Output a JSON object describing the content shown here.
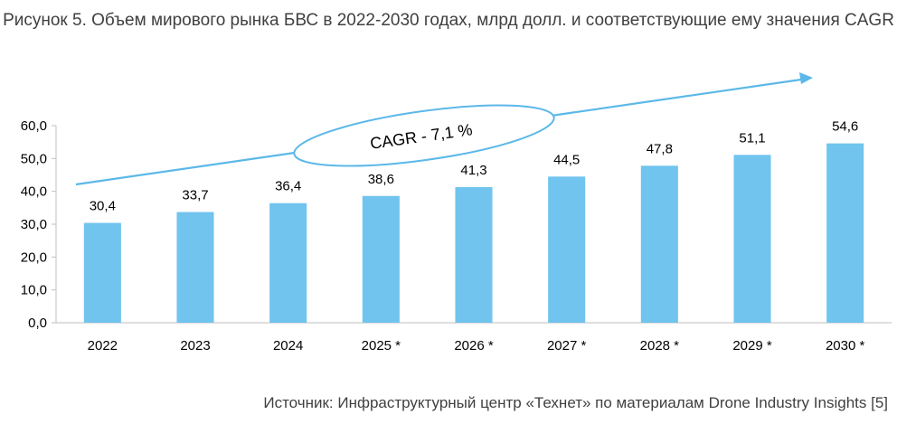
{
  "chart_data": {
    "type": "bar",
    "title": "Рисунок 5. Объем мирового рынка БВС в 2022-2030 годах, млрд долл. и соответствующие ему значения CAGR",
    "categories": [
      "2022",
      "2023",
      "2024",
      "2025 *",
      "2026 *",
      "2027 *",
      "2028 *",
      "2029 *",
      "2030 *"
    ],
    "values": [
      30.4,
      33.7,
      36.4,
      38.6,
      41.3,
      44.5,
      47.8,
      51.1,
      54.6
    ],
    "value_labels": [
      "30,4",
      "33,7",
      "36,4",
      "38,6",
      "41,3",
      "44,5",
      "47,8",
      "51,1",
      "54,6"
    ],
    "ylim": [
      0,
      60
    ],
    "yticks": [
      "0,0",
      "10,0",
      "20,0",
      "30,0",
      "40,0",
      "50,0",
      "60,0"
    ],
    "grid": false,
    "bar_color": "#70C4EE",
    "annotation": "CAGR - 7,1 %",
    "arrow_color": "#5BB8E8",
    "source": "Источник: Инфраструктурный центр «Технет» по материалам Drone Industry Insights [5]"
  }
}
